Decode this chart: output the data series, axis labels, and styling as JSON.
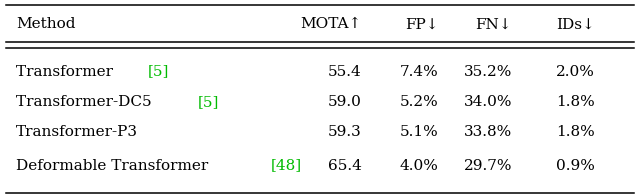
{
  "headers": [
    "Method",
    "MOTA↑",
    "FP↓",
    "FN↓",
    "IDs↓"
  ],
  "rows": [
    [
      [
        "Transformer ",
        "[5]"
      ],
      "55.4",
      "7.4%",
      "35.2%",
      "2.0%"
    ],
    [
      [
        "Transformer-DC5 ",
        "[5]"
      ],
      "59.0",
      "5.2%",
      "34.0%",
      "1.8%"
    ],
    [
      [
        "Transformer-P3",
        ""
      ],
      "59.3",
      "5.1%",
      "33.8%",
      "1.8%"
    ],
    [
      [
        "Deformable Transformer ",
        "[48]"
      ],
      "65.4",
      "4.0%",
      "29.7%",
      "0.9%"
    ]
  ],
  "header_color": "#000000",
  "row_color": "#000000",
  "cite_color": "#00bb00",
  "bg_color": "#ffffff",
  "font_size": 11.0,
  "figsize": [
    6.4,
    1.96
  ],
  "dpi": 100
}
